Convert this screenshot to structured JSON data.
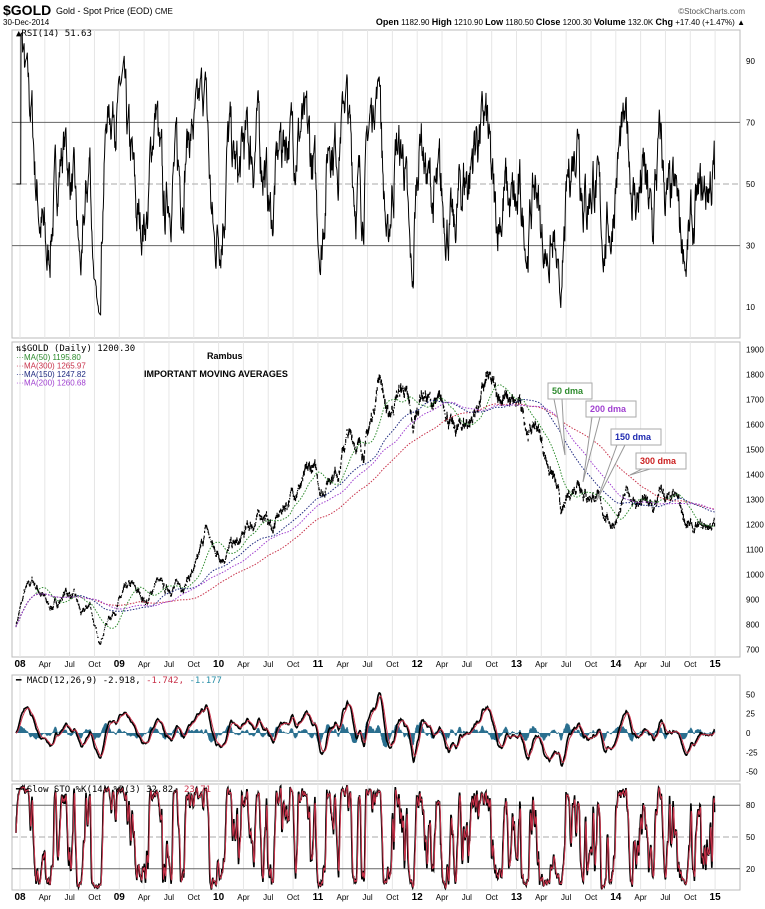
{
  "header": {
    "symbol": "$GOLD",
    "name": "Gold - Spot Price (EOD)",
    "exchange": "CME",
    "date": "30-Dec-2014",
    "brand": "©StockCharts.com",
    "open_label": "Open",
    "open": "1182.90",
    "high_label": "High",
    "high": "1210.90",
    "low_label": "Low",
    "low": "1180.50",
    "close_label": "Close",
    "close": "1200.30",
    "volume_label": "Volume",
    "volume": "132.0K",
    "chg_label": "Chg",
    "chg": "+17.40 (+1.47%)",
    "chg_arrow": "▲"
  },
  "chart_data": [
    {
      "type": "line",
      "panel": "rsi",
      "title": "RSI(14) 51.63",
      "yticks": [
        "90",
        "70",
        "50",
        "30",
        "10"
      ],
      "ylim": [
        0,
        100
      ],
      "reference_lines": [
        70,
        50,
        30
      ],
      "overbought_fill_color": "#4a7a4a"
    },
    {
      "type": "line",
      "panel": "price",
      "title": "$GOLD (Daily) 1200.30",
      "note_author": "Rambus",
      "note_title": "IMPORTANT MOVING AVERAGES",
      "legend": [
        {
          "label": "MA(50) 1195.80",
          "color": "#2e8b2e"
        },
        {
          "label": "MA(300) 1265.97",
          "color": "#c8324a"
        },
        {
          "label": "MA(150) 1247.82",
          "color": "#1f2a80"
        },
        {
          "label": "MA(200) 1260.68",
          "color": "#a040d0"
        }
      ],
      "annotations": [
        {
          "text": "50 dma",
          "color": "#2e8b2e"
        },
        {
          "text": "200 dma",
          "color": "#a040d0"
        },
        {
          "text": "150 dma",
          "color": "#1f2ab0"
        },
        {
          "text": "300 dma",
          "color": "#cc2222"
        }
      ],
      "yticks": [
        "1900",
        "1800",
        "1700",
        "1600",
        "1500",
        "1400",
        "1300",
        "1200",
        "1100",
        "1000",
        "900",
        "800",
        "700"
      ],
      "ylim": [
        670,
        1930
      ],
      "x_start": "2007-12",
      "monthly_close": {
        "2007": [
          800
        ],
        "2008": [
          920,
          970,
          930,
          870,
          885,
          930,
          915,
          830,
          880,
          720,
          815,
          870
        ],
        "2009": [
          920,
          945,
          915,
          890,
          980,
          930,
          955,
          955,
          1000,
          1040,
          1180,
          1090
        ],
        "2010": [
          1080,
          1115,
          1115,
          1180,
          1215,
          1245,
          1180,
          1245,
          1305,
          1355,
          1385,
          1420
        ],
        "2011": [
          1330,
          1410,
          1430,
          1555,
          1535,
          1500,
          1620,
          1820,
          1620,
          1720,
          1745,
          1565
        ],
        "2012": [
          1740,
          1695,
          1665,
          1665,
          1560,
          1600,
          1620,
          1690,
          1775,
          1715,
          1715,
          1675
        ],
        "2013": [
          1660,
          1580,
          1595,
          1475,
          1390,
          1235,
          1315,
          1395,
          1325,
          1325,
          1250,
          1205
        ],
        "2014": [
          1245,
          1325,
          1285,
          1290,
          1250,
          1325,
          1285,
          1285,
          1210,
          1170,
          1180,
          1200
        ]
      }
    },
    {
      "type": "line",
      "panel": "macd",
      "title": "MACD(12,26,9)",
      "value_macd": "-2.918,",
      "value_signal": "-1.742,",
      "value_hist": "-1.177",
      "colors": {
        "macd": "#000000",
        "signal": "#c8324a",
        "hist": "#2a6f8f"
      },
      "yticks": [
        "50",
        "25",
        "0",
        "-25",
        "-50"
      ],
      "ylim": [
        -62,
        75
      ]
    },
    {
      "type": "line",
      "panel": "sto",
      "title": "Slow STO %K(14) %D(3)",
      "value_k": "32.82,",
      "value_d": "23.71",
      "colors": {
        "k": "#000000",
        "d": "#c8324a"
      },
      "yticks": [
        "80",
        "50",
        "20"
      ],
      "ylim": [
        0,
        100
      ]
    }
  ],
  "xaxis": [
    "08",
    "Apr",
    "Jul",
    "Oct",
    "09",
    "Apr",
    "Jul",
    "Oct",
    "10",
    "Apr",
    "Jul",
    "Oct",
    "11",
    "Apr",
    "Jul",
    "Oct",
    "12",
    "Apr",
    "Jul",
    "Oct",
    "13",
    "Apr",
    "Jul",
    "Oct",
    "14",
    "Apr",
    "Jul",
    "Oct",
    "15"
  ]
}
